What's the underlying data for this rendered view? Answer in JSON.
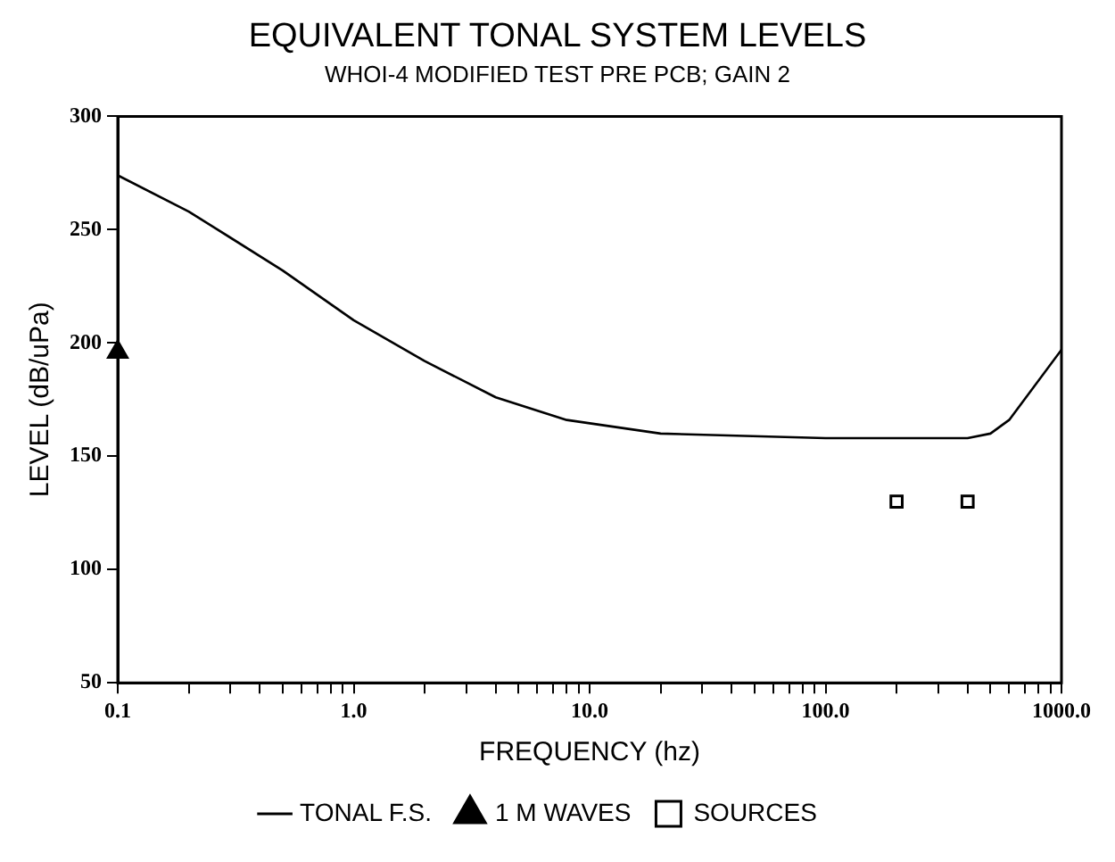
{
  "chart_data": {
    "type": "line",
    "title": "EQUIVALENT TONAL SYSTEM LEVELS",
    "subtitle": "WHOI-4 MODIFIED TEST PRE PCB; GAIN 2",
    "xlabel": "FREQUENCY (hz)",
    "ylabel": "LEVEL (dB/uPa)",
    "log": "x",
    "grid": false,
    "legend": "bottom",
    "xlim": [
      0.1,
      1000
    ],
    "ylim": [
      50,
      300
    ],
    "xticks": [
      {
        "value": 0.1,
        "label": "0.1"
      },
      {
        "value": 0.2,
        "label": null
      },
      {
        "value": 0.3,
        "label": null
      },
      {
        "value": 0.4,
        "label": null
      },
      {
        "value": 0.5,
        "label": null
      },
      {
        "value": 0.6,
        "label": null
      },
      {
        "value": 0.7,
        "label": null
      },
      {
        "value": 0.8,
        "label": null
      },
      {
        "value": 0.9,
        "label": null
      },
      {
        "value": 1,
        "label": "1.0"
      },
      {
        "value": 2,
        "label": null
      },
      {
        "value": 3,
        "label": null
      },
      {
        "value": 4,
        "label": null
      },
      {
        "value": 5,
        "label": null
      },
      {
        "value": 6,
        "label": null
      },
      {
        "value": 7,
        "label": null
      },
      {
        "value": 8,
        "label": null
      },
      {
        "value": 9,
        "label": null
      },
      {
        "value": 10,
        "label": "10.0"
      },
      {
        "value": 20,
        "label": null
      },
      {
        "value": 30,
        "label": null
      },
      {
        "value": 40,
        "label": null
      },
      {
        "value": 50,
        "label": null
      },
      {
        "value": 60,
        "label": null
      },
      {
        "value": 70,
        "label": null
      },
      {
        "value": 80,
        "label": null
      },
      {
        "value": 90,
        "label": null
      },
      {
        "value": 100,
        "label": "100.0"
      },
      {
        "value": 200,
        "label": null
      },
      {
        "value": 300,
        "label": null
      },
      {
        "value": 400,
        "label": null
      },
      {
        "value": 500,
        "label": null
      },
      {
        "value": 600,
        "label": null
      },
      {
        "value": 700,
        "label": null
      },
      {
        "value": 800,
        "label": null
      },
      {
        "value": 900,
        "label": null
      },
      {
        "value": 1000,
        "label": "1000.0"
      }
    ],
    "yticks": [
      50,
      100,
      150,
      200,
      250,
      300
    ],
    "series": [
      {
        "name": "TONAL F.S.",
        "type": "line",
        "color": "#000000",
        "marker": "none",
        "line_style": "solid",
        "x": [
          0.1,
          0.2,
          0.5,
          1,
          2,
          4,
          8,
          20,
          100,
          400,
          500,
          600,
          1000
        ],
        "values": [
          274,
          258,
          232,
          210,
          192,
          176,
          166,
          160,
          158,
          158,
          160,
          166,
          197
        ]
      },
      {
        "name": "1 M WAVES",
        "type": "scatter",
        "color": "#000000",
        "marker": "triangle",
        "x": [
          0.1
        ],
        "values": [
          196
        ]
      },
      {
        "name": "SOURCES",
        "type": "scatter",
        "color": "#000000",
        "marker": "square",
        "x": [
          200,
          400
        ],
        "values": [
          130,
          130
        ]
      }
    ]
  }
}
